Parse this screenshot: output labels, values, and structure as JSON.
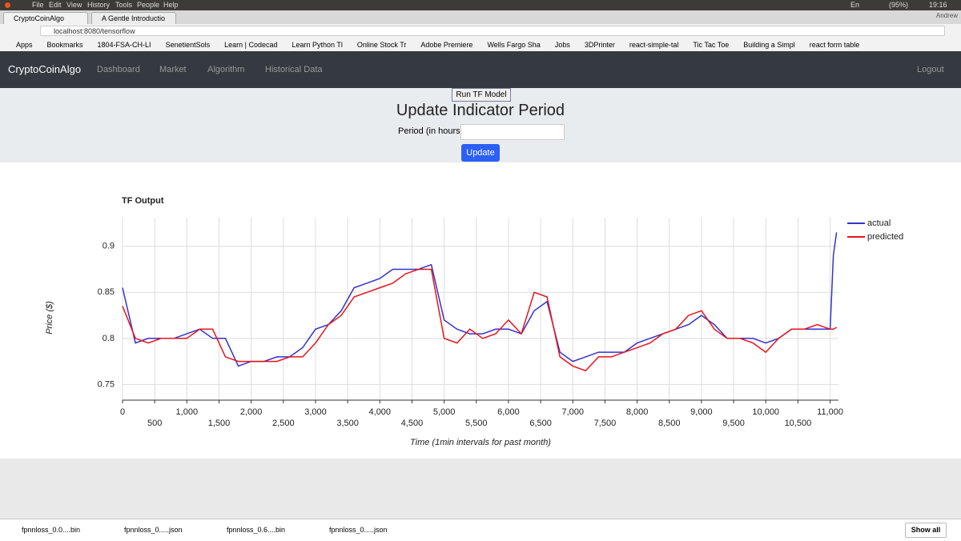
{
  "os_bar": {
    "menu": [
      "File",
      "Edit",
      "View",
      "History",
      "Tools",
      "People",
      "Help"
    ],
    "lang": "En",
    "battery": "(95%)",
    "clock": "19:16"
  },
  "browser": {
    "tabs": [
      "CryptoCoinAlgo",
      "A Gentle Introductio"
    ],
    "user": "Andrew",
    "url": "localhost:8080/tensorflow",
    "bookmarks": [
      "Apps",
      "Bookmarks",
      "1804-FSA-CH-LI",
      "SenetientSols",
      "Learn | Codecad",
      "Learn Python Tl",
      "Online Stock Tr",
      "Adobe Premiere",
      "Wells Fargo Sha",
      "Jobs",
      "3DPrinter",
      "react-simple-tal",
      "Tic Tac Toe",
      "Building a Simpl",
      "react form table"
    ]
  },
  "navbar": {
    "brand": "CryptoCoinAlgo",
    "links": [
      "Dashboard",
      "Market",
      "Algorithm",
      "Historical Data"
    ],
    "logout": "Logout"
  },
  "form": {
    "run_button": "Run TF Model",
    "heading": "Update Indicator Period",
    "period_label": "Period (in hours):",
    "submit": "Update"
  },
  "chart_data": {
    "type": "line",
    "title": "TF Output",
    "x_label": "Time (1min intervals for past month)",
    "y_label": "Price ($)",
    "legend": "top-right",
    "grid": true,
    "x": [
      0,
      200,
      400,
      600,
      800,
      1000,
      1200,
      1400,
      1600,
      1800,
      2000,
      2200,
      2400,
      2600,
      2800,
      3000,
      3200,
      3400,
      3600,
      3800,
      4000,
      4200,
      4400,
      4600,
      4800,
      5000,
      5200,
      5400,
      5600,
      5800,
      6000,
      6200,
      6400,
      6600,
      6800,
      7000,
      7200,
      7400,
      7600,
      7800,
      8000,
      8200,
      8400,
      8600,
      8800,
      9000,
      9200,
      9400,
      9600,
      9800,
      10000,
      10200,
      10400,
      10600,
      10800,
      11000,
      11050,
      11100
    ],
    "series": [
      {
        "name": "actual",
        "color": "#3333cc",
        "values": [
          0.855,
          0.795,
          0.8,
          0.8,
          0.8,
          0.805,
          0.81,
          0.8,
          0.8,
          0.77,
          0.775,
          0.775,
          0.78,
          0.78,
          0.79,
          0.81,
          0.815,
          0.83,
          0.855,
          0.86,
          0.865,
          0.875,
          0.875,
          0.875,
          0.88,
          0.82,
          0.81,
          0.805,
          0.805,
          0.81,
          0.81,
          0.805,
          0.83,
          0.84,
          0.785,
          0.775,
          0.78,
          0.785,
          0.785,
          0.785,
          0.795,
          0.8,
          0.805,
          0.81,
          0.815,
          0.825,
          0.815,
          0.8,
          0.8,
          0.8,
          0.795,
          0.8,
          0.81,
          0.81,
          0.81,
          0.81,
          0.89,
          0.915
        ]
      },
      {
        "name": "predicted",
        "color": "#e8141c",
        "values": [
          0.835,
          0.8,
          0.795,
          0.8,
          0.8,
          0.8,
          0.81,
          0.81,
          0.78,
          0.775,
          0.775,
          0.775,
          0.775,
          0.78,
          0.78,
          0.795,
          0.815,
          0.825,
          0.845,
          0.85,
          0.855,
          0.86,
          0.87,
          0.875,
          0.875,
          0.8,
          0.795,
          0.81,
          0.8,
          0.805,
          0.82,
          0.805,
          0.85,
          0.845,
          0.78,
          0.77,
          0.765,
          0.78,
          0.78,
          0.785,
          0.79,
          0.795,
          0.805,
          0.81,
          0.825,
          0.83,
          0.81,
          0.8,
          0.8,
          0.795,
          0.785,
          0.8,
          0.81,
          0.81,
          0.815,
          0.81,
          0.81,
          0.812
        ]
      }
    ],
    "xlim": [
      0,
      11130
    ],
    "ylim": [
      0.733,
      0.931
    ],
    "xticks": [
      0,
      500,
      {
        "value": 1000,
        "label": "1,000"
      },
      {
        "value": 1500,
        "label": "1,500"
      },
      {
        "value": 2000,
        "label": "2,000"
      },
      {
        "value": 2500,
        "label": "2,500"
      },
      {
        "value": 3000,
        "label": "3,000"
      },
      {
        "value": 3500,
        "label": "3,500"
      },
      {
        "value": 4000,
        "label": "4,000"
      },
      {
        "value": 4500,
        "label": "4,500"
      },
      {
        "value": 5000,
        "label": "5,000"
      },
      {
        "value": 5500,
        "label": "5,500"
      },
      {
        "value": 6000,
        "label": "6,000"
      },
      {
        "value": 6500,
        "label": "6,500"
      },
      {
        "value": 7000,
        "label": "7,000"
      },
      {
        "value": 7500,
        "label": "7,500"
      },
      {
        "value": 8000,
        "label": "8,000"
      },
      {
        "value": 8500,
        "label": "8,500"
      },
      {
        "value": 9000,
        "label": "9,000"
      },
      {
        "value": 9500,
        "label": "9,500"
      },
      {
        "value": 10000,
        "label": "10,000"
      },
      {
        "value": 10500,
        "label": "10,500"
      },
      {
        "value": 11000,
        "label": "11,000"
      }
    ],
    "yticks": [
      0.75,
      0.8,
      0.85,
      0.9
    ]
  },
  "downloads": {
    "items": [
      "fpnnloss_0.0....bin",
      "fpnnloss_0.....json",
      "fpnnloss_0.6....bin",
      "fpnnloss_0.....json"
    ],
    "show_all": "Show all"
  }
}
